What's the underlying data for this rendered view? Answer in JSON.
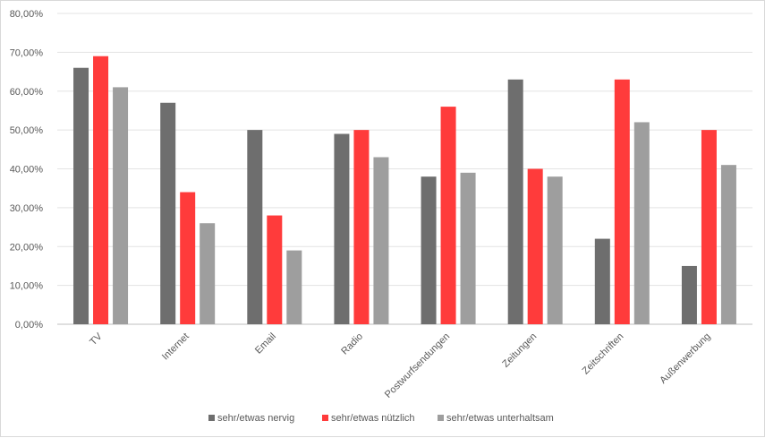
{
  "chart_data": {
    "type": "bar",
    "title": "",
    "xlabel": "",
    "ylabel": "",
    "categories": [
      "TV",
      "Internet",
      "Email",
      "Radio",
      "Postwurfsendungen",
      "Zeitungen",
      "Zeitschriften",
      "Außenwerbung"
    ],
    "series": [
      {
        "name": "sehr/etwas nervig",
        "color": "#6e6e6e",
        "values": [
          66,
          57,
          50,
          49,
          38,
          63,
          22,
          15
        ]
      },
      {
        "name": "sehr/etwas nützlich",
        "color": "#ff3b3b",
        "values": [
          69,
          34,
          28,
          50,
          56,
          40,
          63,
          50
        ]
      },
      {
        "name": "sehr/etwas unterhaltsam",
        "color": "#9e9e9e",
        "values": [
          61,
          26,
          19,
          43,
          39,
          38,
          52,
          41
        ]
      }
    ],
    "ylim": [
      0,
      80
    ],
    "yticks": [
      "0,00%",
      "10,00%",
      "20,00%",
      "30,00%",
      "40,00%",
      "50,00%",
      "60,00%",
      "70,00%",
      "80,00%"
    ],
    "grid": true,
    "legend_position": "bottom"
  }
}
